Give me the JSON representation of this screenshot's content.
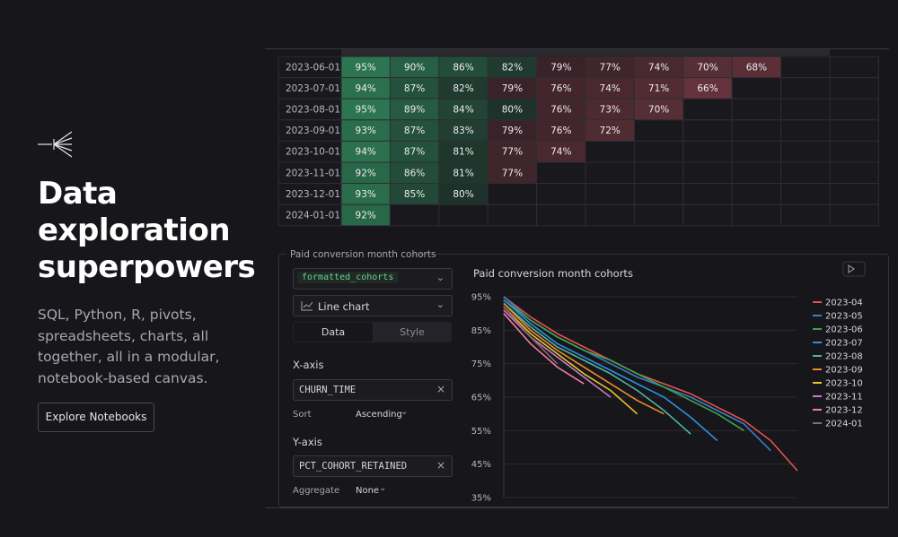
{
  "hero": {
    "title": "Data exploration superpowers",
    "description": "SQL, Python, R, pivots, spreadsheets, charts, all together, all in a modular, notebook-based canvas.",
    "button": "Explore Notebooks"
  },
  "table": {
    "rows": [
      [
        "2023-06-01",
        "95%",
        "90%",
        "86%",
        "82%",
        "79%",
        "77%",
        "74%",
        "70%",
        "68%"
      ],
      [
        "2023-07-01",
        "94%",
        "87%",
        "82%",
        "79%",
        "76%",
        "74%",
        "71%",
        "66%"
      ],
      [
        "2023-08-01",
        "95%",
        "89%",
        "84%",
        "80%",
        "76%",
        "73%",
        "70%"
      ],
      [
        "2023-09-01",
        "93%",
        "87%",
        "83%",
        "79%",
        "76%",
        "72%"
      ],
      [
        "2023-10-01",
        "94%",
        "87%",
        "81%",
        "77%",
        "74%"
      ],
      [
        "2023-11-01",
        "92%",
        "86%",
        "81%",
        "77%"
      ],
      [
        "2023-12-01",
        "93%",
        "85%",
        "80%"
      ],
      [
        "2024-01-01",
        "92%"
      ]
    ]
  },
  "panel": {
    "label": "Paid conversion month cohorts",
    "dataframe": "formatted_cohorts",
    "chart_kind": "Line chart",
    "tabs": [
      "Data",
      "Style"
    ],
    "x_axis_label": "X-axis",
    "x_column": "CHURN_TIME",
    "sort_label": "Sort",
    "sort_value": "Ascending",
    "y_axis_label": "Y-axis",
    "y_column": "PCT_COHORT_RETAINED",
    "aggregate_label": "Aggregate",
    "aggregate_value": "None"
  },
  "chart_data": {
    "type": "line",
    "title": "Paid conversion month cohorts",
    "categories": [
      null,
      null,
      null,
      null,
      null,
      null,
      null,
      null,
      null,
      null,
      null,
      null
    ],
    "ylim": [
      35,
      95
    ],
    "yticks": [
      {
        "value": 35,
        "label": "35%"
      },
      {
        "value": 45,
        "label": "45%"
      },
      {
        "value": 55,
        "label": "55%"
      },
      {
        "value": 65,
        "label": "65%"
      },
      {
        "value": 75,
        "label": "75%"
      },
      {
        "value": 85,
        "label": "85%"
      },
      {
        "value": 95,
        "label": "95%"
      }
    ],
    "grid": true,
    "legend": "right",
    "series": [
      {
        "name": "2023-04",
        "color": "#e0534f",
        "values": [
          95,
          89,
          84,
          80,
          76,
          72,
          69,
          66,
          62,
          58,
          52,
          43
        ]
      },
      {
        "name": "2023-05",
        "color": "#3b7fc4",
        "values": [
          95,
          88,
          83,
          79,
          75,
          71,
          68,
          65,
          61,
          57,
          49,
          null
        ]
      },
      {
        "name": "2023-06",
        "color": "#3fa34d",
        "values": [
          94,
          88,
          83,
          79,
          76,
          72,
          68,
          64,
          60,
          55,
          null,
          null
        ]
      },
      {
        "name": "2023-07",
        "color": "#2f8fdc",
        "values": [
          94,
          87,
          81,
          77,
          73,
          69,
          65,
          59,
          52,
          null,
          null,
          null
        ]
      },
      {
        "name": "2023-08",
        "color": "#4fb5a0",
        "values": [
          93,
          86,
          80,
          76,
          72,
          67,
          61,
          54,
          null,
          null,
          null,
          null
        ]
      },
      {
        "name": "2023-09",
        "color": "#f0892e",
        "values": [
          93,
          85,
          79,
          74,
          69,
          64,
          60,
          null,
          null,
          null,
          null,
          null
        ]
      },
      {
        "name": "2023-10",
        "color": "#e8c531",
        "values": [
          92,
          84,
          78,
          72,
          67,
          60,
          null,
          null,
          null,
          null,
          null,
          null
        ]
      },
      {
        "name": "2023-11",
        "color": "#c77cc7",
        "values": [
          91,
          83,
          77,
          71,
          65,
          null,
          null,
          null,
          null,
          null,
          null,
          null
        ]
      },
      {
        "name": "2023-12",
        "color": "#f07ca0",
        "values": [
          90,
          81,
          74,
          69,
          null,
          null,
          null,
          null,
          null,
          null,
          null,
          null
        ]
      },
      {
        "name": "2024-01",
        "color": "#8a6a6a",
        "values": [
          92,
          83,
          75,
          null,
          null,
          null,
          null,
          null,
          null,
          null,
          null,
          null
        ]
      }
    ]
  }
}
